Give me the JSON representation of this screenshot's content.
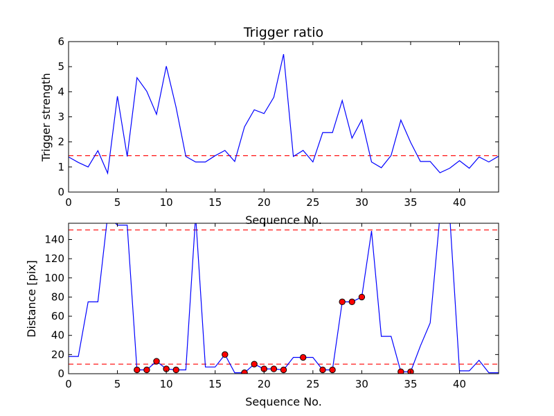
{
  "colors": {
    "line": "#0000ff",
    "threshold": "#ff0000",
    "marker": "#ff0000"
  },
  "chart_data": [
    {
      "type": "line",
      "title": "Trigger ratio",
      "xlabel": "Sequence No.",
      "ylabel": "Trigger strength",
      "xlim": [
        0,
        44
      ],
      "ylim": [
        0,
        6
      ],
      "xticks": [
        0,
        5,
        10,
        15,
        20,
        25,
        30,
        35,
        40
      ],
      "yticks": [
        0,
        1,
        2,
        3,
        4,
        5,
        6
      ],
      "grid": false,
      "x": [
        0,
        1,
        2,
        3,
        4,
        5,
        6,
        7,
        8,
        9,
        10,
        11,
        12,
        13,
        14,
        15,
        16,
        17,
        18,
        19,
        20,
        21,
        22,
        23,
        24,
        25,
        26,
        27,
        28,
        29,
        30,
        31,
        32,
        33,
        34,
        35,
        36,
        37,
        38,
        39,
        40,
        41,
        42,
        43,
        44
      ],
      "y": [
        1.4,
        1.18,
        1.0,
        1.65,
        0.75,
        3.82,
        1.42,
        4.56,
        4.02,
        3.1,
        5.02,
        3.38,
        1.42,
        1.2,
        1.2,
        1.45,
        1.66,
        1.22,
        2.6,
        3.28,
        3.13,
        3.78,
        5.5,
        1.42,
        1.66,
        1.2,
        2.37,
        2.37,
        3.65,
        2.15,
        2.88,
        1.2,
        0.97,
        1.46,
        2.87,
        1.98,
        1.22,
        1.22,
        0.77,
        0.95,
        1.25,
        0.95,
        1.4,
        1.2,
        1.43
      ],
      "thresholds": [
        1.45
      ]
    },
    {
      "type": "line",
      "title": "",
      "xlabel": "Sequence No.",
      "ylabel": "Distance [pix]",
      "xlim": [
        0,
        44
      ],
      "ylim": [
        0,
        157
      ],
      "xticks": [
        0,
        5,
        10,
        15,
        20,
        25,
        30,
        35,
        40
      ],
      "yticks": [
        0,
        20,
        40,
        60,
        80,
        100,
        120,
        140
      ],
      "grid": false,
      "x": [
        0,
        1,
        2,
        3,
        4,
        5,
        6,
        7,
        8,
        9,
        10,
        11,
        12,
        13,
        14,
        15,
        16,
        17,
        18,
        19,
        20,
        21,
        22,
        23,
        24,
        25,
        26,
        27,
        28,
        29,
        30,
        31,
        32,
        33,
        34,
        35,
        36,
        37,
        38,
        39,
        40,
        41,
        42,
        43,
        44
      ],
      "y": [
        18,
        18,
        75,
        75,
        165,
        155,
        155,
        4,
        4,
        13,
        5,
        4,
        4,
        165,
        7,
        7,
        20,
        1,
        1,
        10,
        5,
        5,
        4,
        17,
        17,
        17,
        4,
        4,
        75,
        75,
        80,
        149,
        39,
        39,
        2,
        2,
        29,
        53,
        165,
        165,
        3,
        3,
        14,
        1,
        1
      ],
      "markers": {
        "x": [
          7,
          8,
          9,
          10,
          11,
          16,
          18,
          19,
          20,
          21,
          22,
          24,
          26,
          27,
          28,
          29,
          30,
          34,
          35
        ],
        "y": [
          4,
          4,
          13,
          5,
          4,
          20,
          1,
          10,
          5,
          5,
          4,
          17,
          4,
          4,
          75,
          75,
          80,
          2,
          2
        ]
      },
      "thresholds": [
        150,
        10
      ]
    }
  ]
}
